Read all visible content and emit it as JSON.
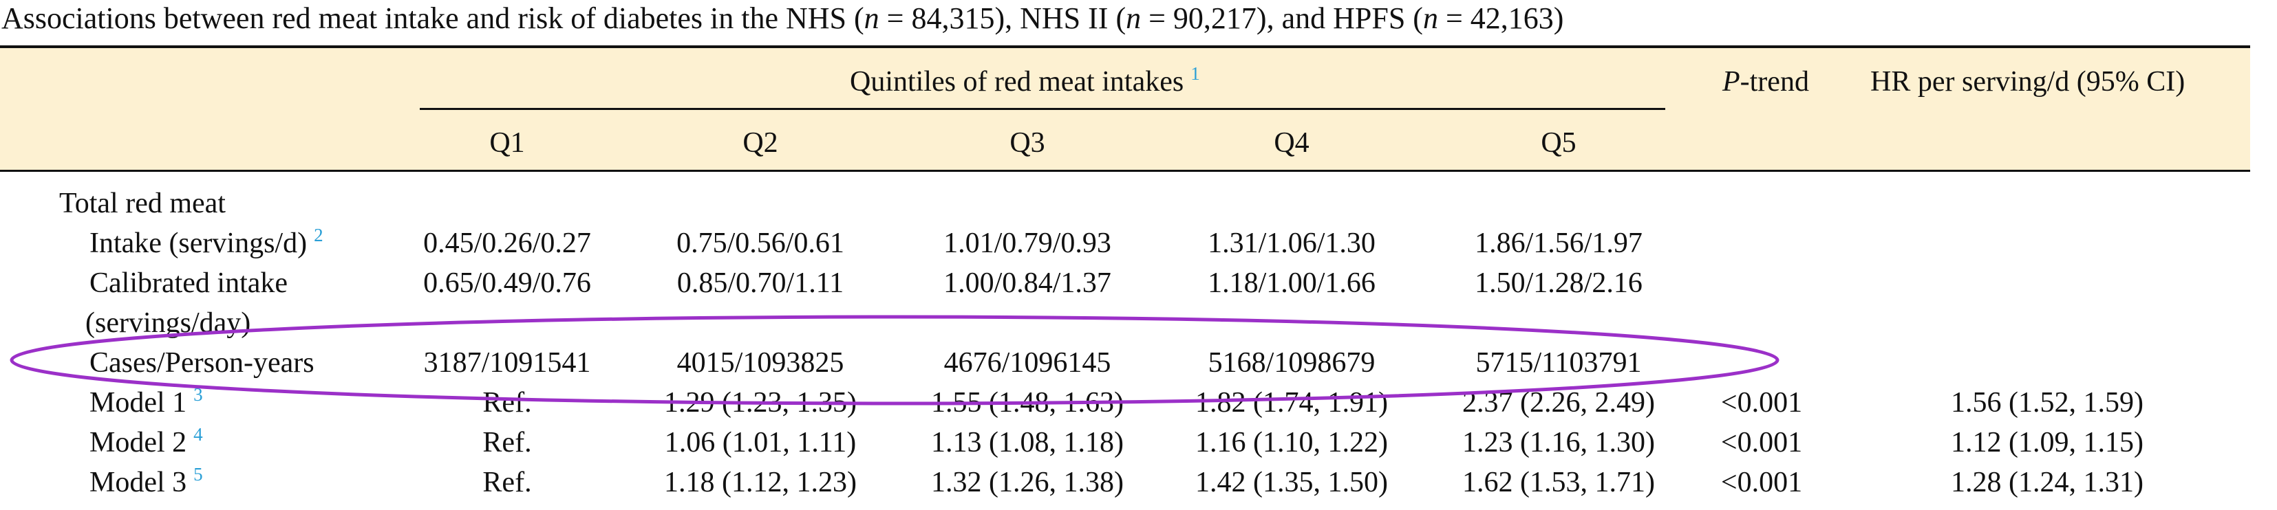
{
  "caption": {
    "pre": "Associations between red meat intake and risk of diabetes in the NHS (",
    "n": "n",
    "eq1": " = 84,315), NHS II (",
    "eq2": " = 90,217), and HPFS (",
    "eq3": " = 42,163)"
  },
  "header": {
    "group_label": "Quintiles of red meat intakes",
    "group_footnote": "1",
    "ptrend_p": "P",
    "ptrend_rest": "-trend",
    "hr_label": "HR per serving/d (95% CI)",
    "quintiles": [
      "Q1",
      "Q2",
      "Q3",
      "Q4",
      "Q5"
    ]
  },
  "section_label": "Total red meat",
  "rows": [
    {
      "label": "Intake (servings/d)",
      "footnote": "2",
      "cells": [
        "0.45/0.26/0.27",
        "0.75/0.56/0.61",
        "1.01/0.79/0.93",
        "1.31/1.06/1.30",
        "1.86/1.56/1.97"
      ],
      "ptrend": "",
      "hr": ""
    },
    {
      "label": "Calibrated intake",
      "label2": "(servings/day)",
      "footnote": "",
      "cells": [
        "0.65/0.49/0.76",
        "0.85/0.70/1.11",
        "1.00/0.84/1.37",
        "1.18/1.00/1.66",
        "1.50/1.28/2.16"
      ],
      "ptrend": "",
      "hr": ""
    },
    {
      "label": "Cases/Person-years",
      "footnote": "",
      "cells": [
        "3187/1091541",
        "4015/1093825",
        "4676/1096145",
        "5168/1098679",
        "5715/1103791"
      ],
      "ptrend": "",
      "hr": ""
    },
    {
      "label": "Model 1",
      "footnote": "3",
      "cells": [
        "Ref.",
        "1.29 (1.23, 1.35)",
        "1.55 (1.48, 1.63)",
        "1.82 (1.74, 1.91)",
        "2.37 (2.26, 2.49)"
      ],
      "ptrend": "<0.001",
      "hr": "1.56 (1.52, 1.59)"
    },
    {
      "label": "Model 2",
      "footnote": "4",
      "cells": [
        "Ref.",
        "1.06 (1.01, 1.11)",
        "1.13 (1.08, 1.18)",
        "1.16 (1.10, 1.22)",
        "1.23 (1.16, 1.30)"
      ],
      "ptrend": "<0.001",
      "hr": "1.12 (1.09, 1.15)"
    },
    {
      "label": "Model 3",
      "footnote": "5",
      "cells": [
        "Ref.",
        "1.18 (1.12, 1.23)",
        "1.32 (1.26, 1.38)",
        "1.42 (1.35, 1.50)",
        "1.62 (1.53, 1.71)"
      ],
      "ptrend": "<0.001",
      "hr": "1.28 (1.24, 1.31)"
    }
  ],
  "colors": {
    "header_band": "#fdf1d2",
    "footnote_link": "#2a9fd6",
    "annotation_ellipse": "#9b30c8"
  }
}
